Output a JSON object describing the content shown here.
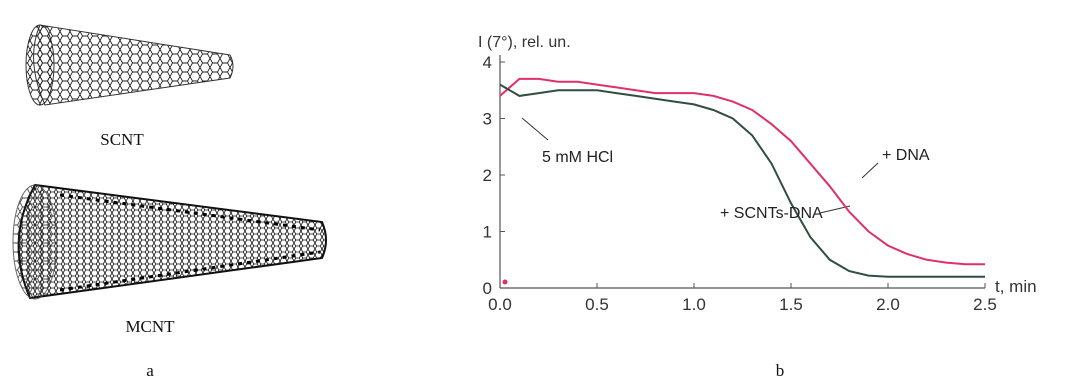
{
  "panel_a": {
    "tube_1_label": "SCNT",
    "tube_2_label": "MCNT",
    "caption": "a"
  },
  "panel_b": {
    "caption": "b"
  },
  "chart_data": {
    "type": "line",
    "y_label": "I (7°), rel. un.",
    "x_label": "t, min",
    "x": [
      0,
      0.1,
      0.2,
      0.3,
      0.4,
      0.5,
      0.6,
      0.7,
      0.8,
      0.9,
      1.0,
      1.1,
      1.2,
      1.3,
      1.4,
      1.5,
      1.6,
      1.7,
      1.8,
      1.9,
      2.0,
      2.1,
      2.2,
      2.3,
      2.4,
      2.5
    ],
    "series": [
      {
        "name": "+ DNA",
        "color": "#e0306a",
        "values": [
          3.4,
          3.7,
          3.7,
          3.65,
          3.65,
          3.6,
          3.55,
          3.5,
          3.45,
          3.45,
          3.45,
          3.4,
          3.3,
          3.15,
          2.9,
          2.6,
          2.2,
          1.8,
          1.35,
          1.0,
          0.75,
          0.6,
          0.5,
          0.45,
          0.42,
          0.42
        ]
      },
      {
        "name": "+ SCNTs-DNA",
        "color": "#2f4f3f",
        "values": [
          3.6,
          3.4,
          3.45,
          3.5,
          3.5,
          3.5,
          3.45,
          3.4,
          3.35,
          3.3,
          3.25,
          3.15,
          3.0,
          2.7,
          2.2,
          1.5,
          0.9,
          0.5,
          0.3,
          0.22,
          0.2,
          0.2,
          0.2,
          0.2,
          0.2,
          0.2
        ]
      }
    ],
    "annotations": [
      "5 mM HCl"
    ],
    "xlim": [
      0,
      2.5
    ],
    "xticks": [
      {
        "value": 0,
        "label": "0.0"
      },
      {
        "value": 0.5,
        "label": "0.5"
      },
      {
        "value": 1,
        "label": "1.0"
      },
      {
        "value": 1.5,
        "label": "1.5"
      },
      {
        "value": 2,
        "label": "2.0"
      },
      {
        "value": 2.5,
        "label": "2.5"
      }
    ],
    "ylim": [
      0,
      4
    ],
    "yticks": [
      0,
      1,
      2,
      3,
      4
    ],
    "grid": false
  }
}
